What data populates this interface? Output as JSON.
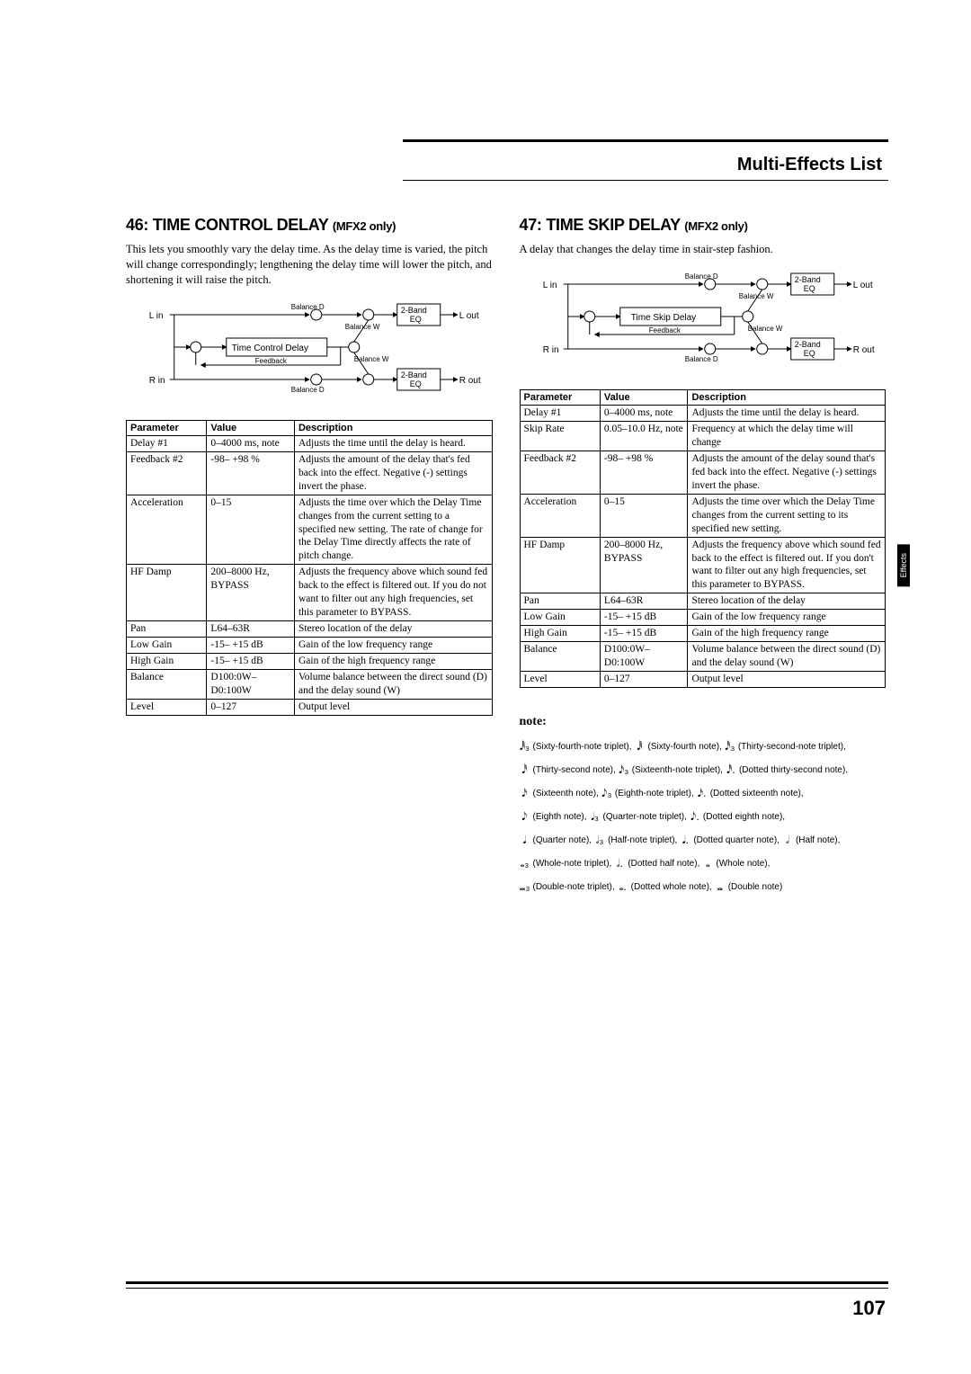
{
  "header": {
    "section_title": "Multi-Effects List"
  },
  "left": {
    "title_num": "46:",
    "title_main": "TIME CONTROL DELAY",
    "title_sub": "(MFX2 only)",
    "intro": "This lets you smoothly vary the delay time. As the delay time is varied, the pitch will change correspondingly; lengthening the delay time will lower the pitch, and shortening it will raise the pitch.",
    "diagram": {
      "l_in": "L in",
      "r_in": "R in",
      "l_out": "L out",
      "r_out": "R out",
      "block": "Time Control Delay",
      "eq": "2-Band\nEQ",
      "balance_d": "Balance D",
      "balance_w": "Balance W",
      "feedback": "Feedback"
    },
    "table": {
      "headers": [
        "Parameter",
        "Value",
        "Description"
      ],
      "rows": [
        [
          "Delay #1",
          "0–4000 ms, note",
          "Adjusts the time until the delay is heard."
        ],
        [
          "Feedback #2",
          "-98– +98 %",
          "Adjusts the amount of the delay that's fed back into the effect. Negative (-) settings invert the phase."
        ],
        [
          "Acceleration",
          "0–15",
          "Adjusts the time over which the Delay Time changes from the current setting to a specified new setting. The rate of change for the Delay Time directly affects the rate of pitch change."
        ],
        [
          "HF Damp",
          "200–8000 Hz, BYPASS",
          "Adjusts the frequency above which sound fed back to the effect is filtered out. If you do not want to filter out any high frequencies, set this parameter to BYPASS."
        ],
        [
          "Pan",
          "L64–63R",
          "Stereo location of the delay"
        ],
        [
          "Low Gain",
          "-15– +15 dB",
          "Gain of the low frequency range"
        ],
        [
          "High Gain",
          "-15– +15 dB",
          "Gain of the high frequency range"
        ],
        [
          "Balance",
          "D100:0W–D0:100W",
          "Volume balance between the direct sound (D) and the delay sound (W)"
        ],
        [
          "Level",
          "0–127",
          "Output level"
        ]
      ]
    }
  },
  "right": {
    "title_num": "47:",
    "title_main": "TIME SKIP DELAY",
    "title_sub": "(MFX2 only)",
    "intro": "A delay that changes the delay time in stair-step fashion.",
    "diagram": {
      "l_in": "L in",
      "r_in": "R in",
      "l_out": "L out",
      "r_out": "R out",
      "block": "Time Skip Delay",
      "eq": "2-Band\nEQ",
      "balance_d": "Balance D",
      "balance_w": "Balance W",
      "feedback": "Feedback"
    },
    "table": {
      "headers": [
        "Parameter",
        "Value",
        "Description"
      ],
      "rows": [
        [
          "Delay #1",
          "0–4000 ms, note",
          "Adjusts the time until the delay is heard."
        ],
        [
          "Skip Rate",
          "0.05–10.0 Hz, note",
          "Frequency at which the delay time will change"
        ],
        [
          "Feedback #2",
          "-98– +98 %",
          "Adjusts the amount of the delay sound that's fed back into the effect. Negative (-) settings invert the phase."
        ],
        [
          "Acceleration",
          "0–15",
          "Adjusts the time over which the Delay Time changes from the current setting to its specified new setting."
        ],
        [
          "HF Damp",
          "200–8000 Hz, BYPASS",
          "Adjusts the frequency above which sound fed back to the effect is filtered out. If you don't want to filter out any high frequencies, set this parameter to BYPASS."
        ],
        [
          "Pan",
          "L64–63R",
          "Stereo location of the delay"
        ],
        [
          "Low Gain",
          "-15– +15 dB",
          "Gain of the low frequency range"
        ],
        [
          "High Gain",
          "-15– +15 dB",
          "Gain of the high frequency range"
        ],
        [
          "Balance",
          "D100:0W–D0:100W",
          "Volume balance between the direct sound (D) and the delay sound (W)"
        ],
        [
          "Level",
          "0–127",
          "Output level"
        ]
      ]
    }
  },
  "notes": {
    "heading": "note:",
    "lines": [
      [
        [
          "𝅘𝅥𝅱₃",
          "(Sixty-fourth-note triplet),"
        ],
        [
          "𝅘𝅥𝅱",
          "(Sixty-fourth note),"
        ],
        [
          "𝅘𝅥𝅰₃",
          "(Thirty-second-note triplet),"
        ]
      ],
      [
        [
          "𝅘𝅥𝅰",
          "(Thirty-second note),"
        ],
        [
          "𝅘𝅥𝅯₃",
          "(Sixteenth-note triplet),"
        ],
        [
          "𝅘𝅥𝅰.",
          "(Dotted thirty-second note),"
        ]
      ],
      [
        [
          "𝅘𝅥𝅯",
          "(Sixteenth note),"
        ],
        [
          "𝅘𝅥𝅮₃",
          "(Eighth-note triplet),"
        ],
        [
          "𝅘𝅥𝅯.",
          "(Dotted sixteenth note),"
        ]
      ],
      [
        [
          "𝅘𝅥𝅮",
          "(Eighth note),"
        ],
        [
          "𝅘𝅥₃",
          "(Quarter-note triplet),"
        ],
        [
          "𝅘𝅥𝅮.",
          "(Dotted eighth note),"
        ]
      ],
      [
        [
          "𝅘𝅥",
          "(Quarter note),"
        ],
        [
          "𝅗𝅥₃",
          "(Half-note triplet),"
        ],
        [
          "𝅘𝅥.",
          "(Dotted quarter note),"
        ],
        [
          "𝅗𝅥",
          "(Half note),"
        ]
      ],
      [
        [
          "𝅝₃",
          "(Whole-note triplet),"
        ],
        [
          "𝅗𝅥.",
          "(Dotted half note),"
        ],
        [
          "𝅝",
          "(Whole note),"
        ]
      ],
      [
        [
          "𝅜₃",
          "(Double-note triplet),"
        ],
        [
          "𝅝.",
          "(Dotted whole note),"
        ],
        [
          "𝅜",
          "(Double note)"
        ]
      ]
    ]
  },
  "side_tab": "Effects",
  "page_number": "107"
}
